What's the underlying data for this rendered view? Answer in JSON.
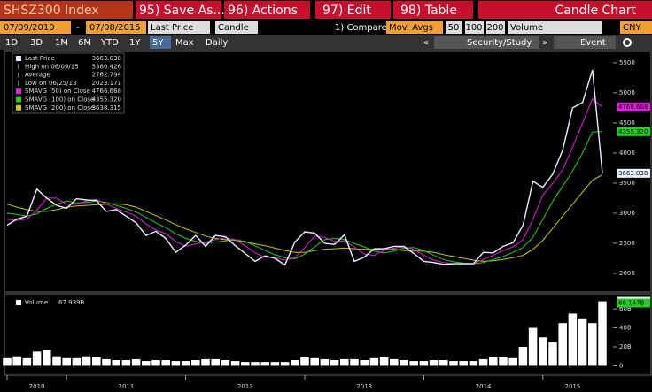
{
  "toolbar": {
    "security": "SHSZ300 Index",
    "buttons": [
      "95) Save As...",
      "96) Actions",
      "97) Edit",
      "98) Table"
    ],
    "chart_title": "Candle Chart"
  },
  "controls": {
    "start_date": "07/09/2010",
    "separator": "-",
    "end_date": "07/08/2015",
    "field": "Last Price",
    "style": "Candle",
    "compare": "1) Compare",
    "studies": "Mov. Avgs",
    "periods": [
      "50",
      "100",
      "200"
    ],
    "lower": "Volume",
    "currency": "CNY"
  },
  "ranges": {
    "items": [
      "1D",
      "3D",
      "1M",
      "6M",
      "YTD",
      "1Y",
      "5Y",
      "Max"
    ],
    "selected_index": 6,
    "frequency": "Daily",
    "panel_left": "«",
    "panel": "Security/Study",
    "panel_right": "»",
    "event": "Event"
  },
  "chart_data": [
    {
      "type": "line",
      "x": [
        "2010-07",
        "2010-08",
        "2010-09",
        "2010-10",
        "2010-11",
        "2010-12",
        "2011-01",
        "2011-02",
        "2011-03",
        "2011-04",
        "2011-05",
        "2011-06",
        "2011-07",
        "2011-08",
        "2011-09",
        "2011-10",
        "2011-11",
        "2011-12",
        "2012-01",
        "2012-02",
        "2012-03",
        "2012-04",
        "2012-05",
        "2012-06",
        "2012-07",
        "2012-08",
        "2012-09",
        "2012-10",
        "2012-11",
        "2012-12",
        "2013-01",
        "2013-02",
        "2013-03",
        "2013-04",
        "2013-05",
        "2013-06",
        "2013-07",
        "2013-08",
        "2013-09",
        "2013-10",
        "2013-11",
        "2013-12",
        "2014-01",
        "2014-02",
        "2014-03",
        "2014-04",
        "2014-05",
        "2014-06",
        "2014-07",
        "2014-08",
        "2014-09",
        "2014-10",
        "2014-11",
        "2014-12",
        "2015-01",
        "2015-02",
        "2015-03",
        "2015-04",
        "2015-05",
        "2015-06",
        "2015-07"
      ],
      "xlim": [
        "2010-07",
        "2015-07"
      ],
      "series": [
        {
          "name": "Last Price",
          "color": "#e8f0ff",
          "flag": true,
          "last_label": "3663.038",
          "values": [
            2800,
            2900,
            2950,
            3400,
            3250,
            3130,
            3080,
            3240,
            3220,
            3210,
            3030,
            3060,
            2950,
            2840,
            2630,
            2700,
            2580,
            2350,
            2470,
            2630,
            2450,
            2630,
            2610,
            2460,
            2330,
            2200,
            2290,
            2250,
            2140,
            2520,
            2690,
            2670,
            2500,
            2480,
            2640,
            2200,
            2270,
            2410,
            2410,
            2450,
            2450,
            2330,
            2200,
            2180,
            2150,
            2160,
            2160,
            2160,
            2350,
            2340,
            2450,
            2510,
            2800,
            3530,
            3430,
            3650,
            4050,
            4750,
            4840,
            5380,
            3663.038
          ]
        },
        {
          "name": "SMAVG (50) on Close",
          "color": "#e020e0",
          "flag": true,
          "last_label": "4766.668",
          "values": [
            2900,
            2880,
            2900,
            3050,
            3250,
            3250,
            3150,
            3150,
            3200,
            3230,
            3150,
            3080,
            3020,
            2950,
            2820,
            2720,
            2660,
            2530,
            2450,
            2490,
            2520,
            2560,
            2590,
            2560,
            2460,
            2340,
            2270,
            2260,
            2220,
            2260,
            2430,
            2620,
            2600,
            2530,
            2540,
            2440,
            2320,
            2300,
            2380,
            2420,
            2440,
            2400,
            2300,
            2220,
            2180,
            2160,
            2160,
            2160,
            2230,
            2300,
            2380,
            2440,
            2560,
            2900,
            3300,
            3500,
            3720,
            4100,
            4500,
            4900,
            4766.668
          ]
        },
        {
          "name": "SMAVG (100) on Close",
          "color": "#20d020",
          "flag": true,
          "last_label": "4355.320",
          "values": [
            3000,
            2980,
            2950,
            2990,
            3080,
            3150,
            3200,
            3170,
            3180,
            3200,
            3180,
            3130,
            3080,
            3020,
            2930,
            2840,
            2760,
            2660,
            2580,
            2530,
            2500,
            2520,
            2540,
            2560,
            2530,
            2460,
            2380,
            2310,
            2260,
            2240,
            2320,
            2440,
            2560,
            2580,
            2560,
            2500,
            2440,
            2370,
            2340,
            2370,
            2420,
            2430,
            2380,
            2300,
            2230,
            2190,
            2170,
            2160,
            2180,
            2230,
            2280,
            2350,
            2430,
            2600,
            2900,
            3200,
            3450,
            3700,
            4000,
            4350,
            4355.32
          ]
        },
        {
          "name": "SMAVG (200) on Close",
          "color": "#c8c800",
          "flag": false,
          "last_label": "3638.315",
          "values": [
            3150,
            3100,
            3060,
            3030,
            3030,
            3060,
            3100,
            3120,
            3130,
            3140,
            3150,
            3160,
            3140,
            3100,
            3030,
            2960,
            2890,
            2810,
            2740,
            2680,
            2620,
            2580,
            2560,
            2550,
            2520,
            2490,
            2460,
            2420,
            2380,
            2350,
            2350,
            2380,
            2400,
            2410,
            2420,
            2410,
            2400,
            2400,
            2410,
            2400,
            2380,
            2370,
            2370,
            2350,
            2310,
            2280,
            2250,
            2220,
            2200,
            2210,
            2230,
            2260,
            2300,
            2400,
            2550,
            2750,
            2950,
            3150,
            3350,
            3550,
            3638.315
          ]
        }
      ],
      "stats": [
        {
          "label": "High on 06/09/15",
          "value": 5380.426
        },
        {
          "label": "Average",
          "value": 2762.794
        },
        {
          "label": "Low on 06/25/13",
          "value": 2023.171
        }
      ],
      "ylim": [
        1720,
        5690
      ],
      "yticks": [
        2000,
        2500,
        3000,
        3500,
        4000,
        4500,
        5000,
        5500
      ],
      "grid": false
    },
    {
      "type": "bar",
      "x": [
        "2010-07",
        "2010-08",
        "2010-09",
        "2010-10",
        "2010-11",
        "2010-12",
        "2011-01",
        "2011-02",
        "2011-03",
        "2011-04",
        "2011-05",
        "2011-06",
        "2011-07",
        "2011-08",
        "2011-09",
        "2011-10",
        "2011-11",
        "2011-12",
        "2012-01",
        "2012-02",
        "2012-03",
        "2012-04",
        "2012-05",
        "2012-06",
        "2012-07",
        "2012-08",
        "2012-09",
        "2012-10",
        "2012-11",
        "2012-12",
        "2013-01",
        "2013-02",
        "2013-03",
        "2013-04",
        "2013-05",
        "2013-06",
        "2013-07",
        "2013-08",
        "2013-09",
        "2013-10",
        "2013-11",
        "2013-12",
        "2014-01",
        "2014-02",
        "2014-03",
        "2014-04",
        "2014-05",
        "2014-06",
        "2014-07",
        "2014-08",
        "2014-09",
        "2014-10",
        "2014-11",
        "2014-12",
        "2015-01",
        "2015-02",
        "2015-03",
        "2015-04",
        "2015-05",
        "2015-06",
        "2015-07"
      ],
      "xlim": [
        "2010-07",
        "2015-07"
      ],
      "xticks": [
        {
          "value": "2010-07",
          "label": "2010"
        },
        {
          "value": "2011-01",
          "label": "2011"
        },
        {
          "value": "2012-01",
          "label": "2012"
        },
        {
          "value": "2013-01",
          "label": "2013"
        },
        {
          "value": "2014-01",
          "label": "2014"
        },
        {
          "value": "2015-01",
          "label": "2015"
        }
      ],
      "series": [
        {
          "name": "Volume",
          "color": "#ffffff",
          "last_label": "67.939B",
          "values": [
            8,
            10,
            8,
            15,
            17,
            10,
            8,
            8,
            10,
            9,
            7,
            6,
            6,
            7,
            5,
            6,
            6,
            5,
            5,
            6,
            7,
            7,
            6,
            5,
            4,
            4,
            4,
            4,
            4,
            6,
            9,
            8,
            7,
            6,
            7,
            7,
            6,
            8,
            9,
            7,
            6,
            5,
            5,
            6,
            6,
            5,
            5,
            5,
            7,
            9,
            9,
            8,
            20,
            40,
            30,
            25,
            45,
            55,
            50,
            45,
            67.939
          ]
        }
      ],
      "volume_ma": {
        "value": 66.147,
        "label": "66.147B",
        "color": "#20d020"
      },
      "ylim": [
        -8,
        75
      ],
      "yticks": [
        0,
        {
          "value": 20,
          "label": "20B"
        },
        {
          "value": 40,
          "label": "40B"
        },
        {
          "value": 60,
          "label": "60B"
        }
      ]
    }
  ]
}
